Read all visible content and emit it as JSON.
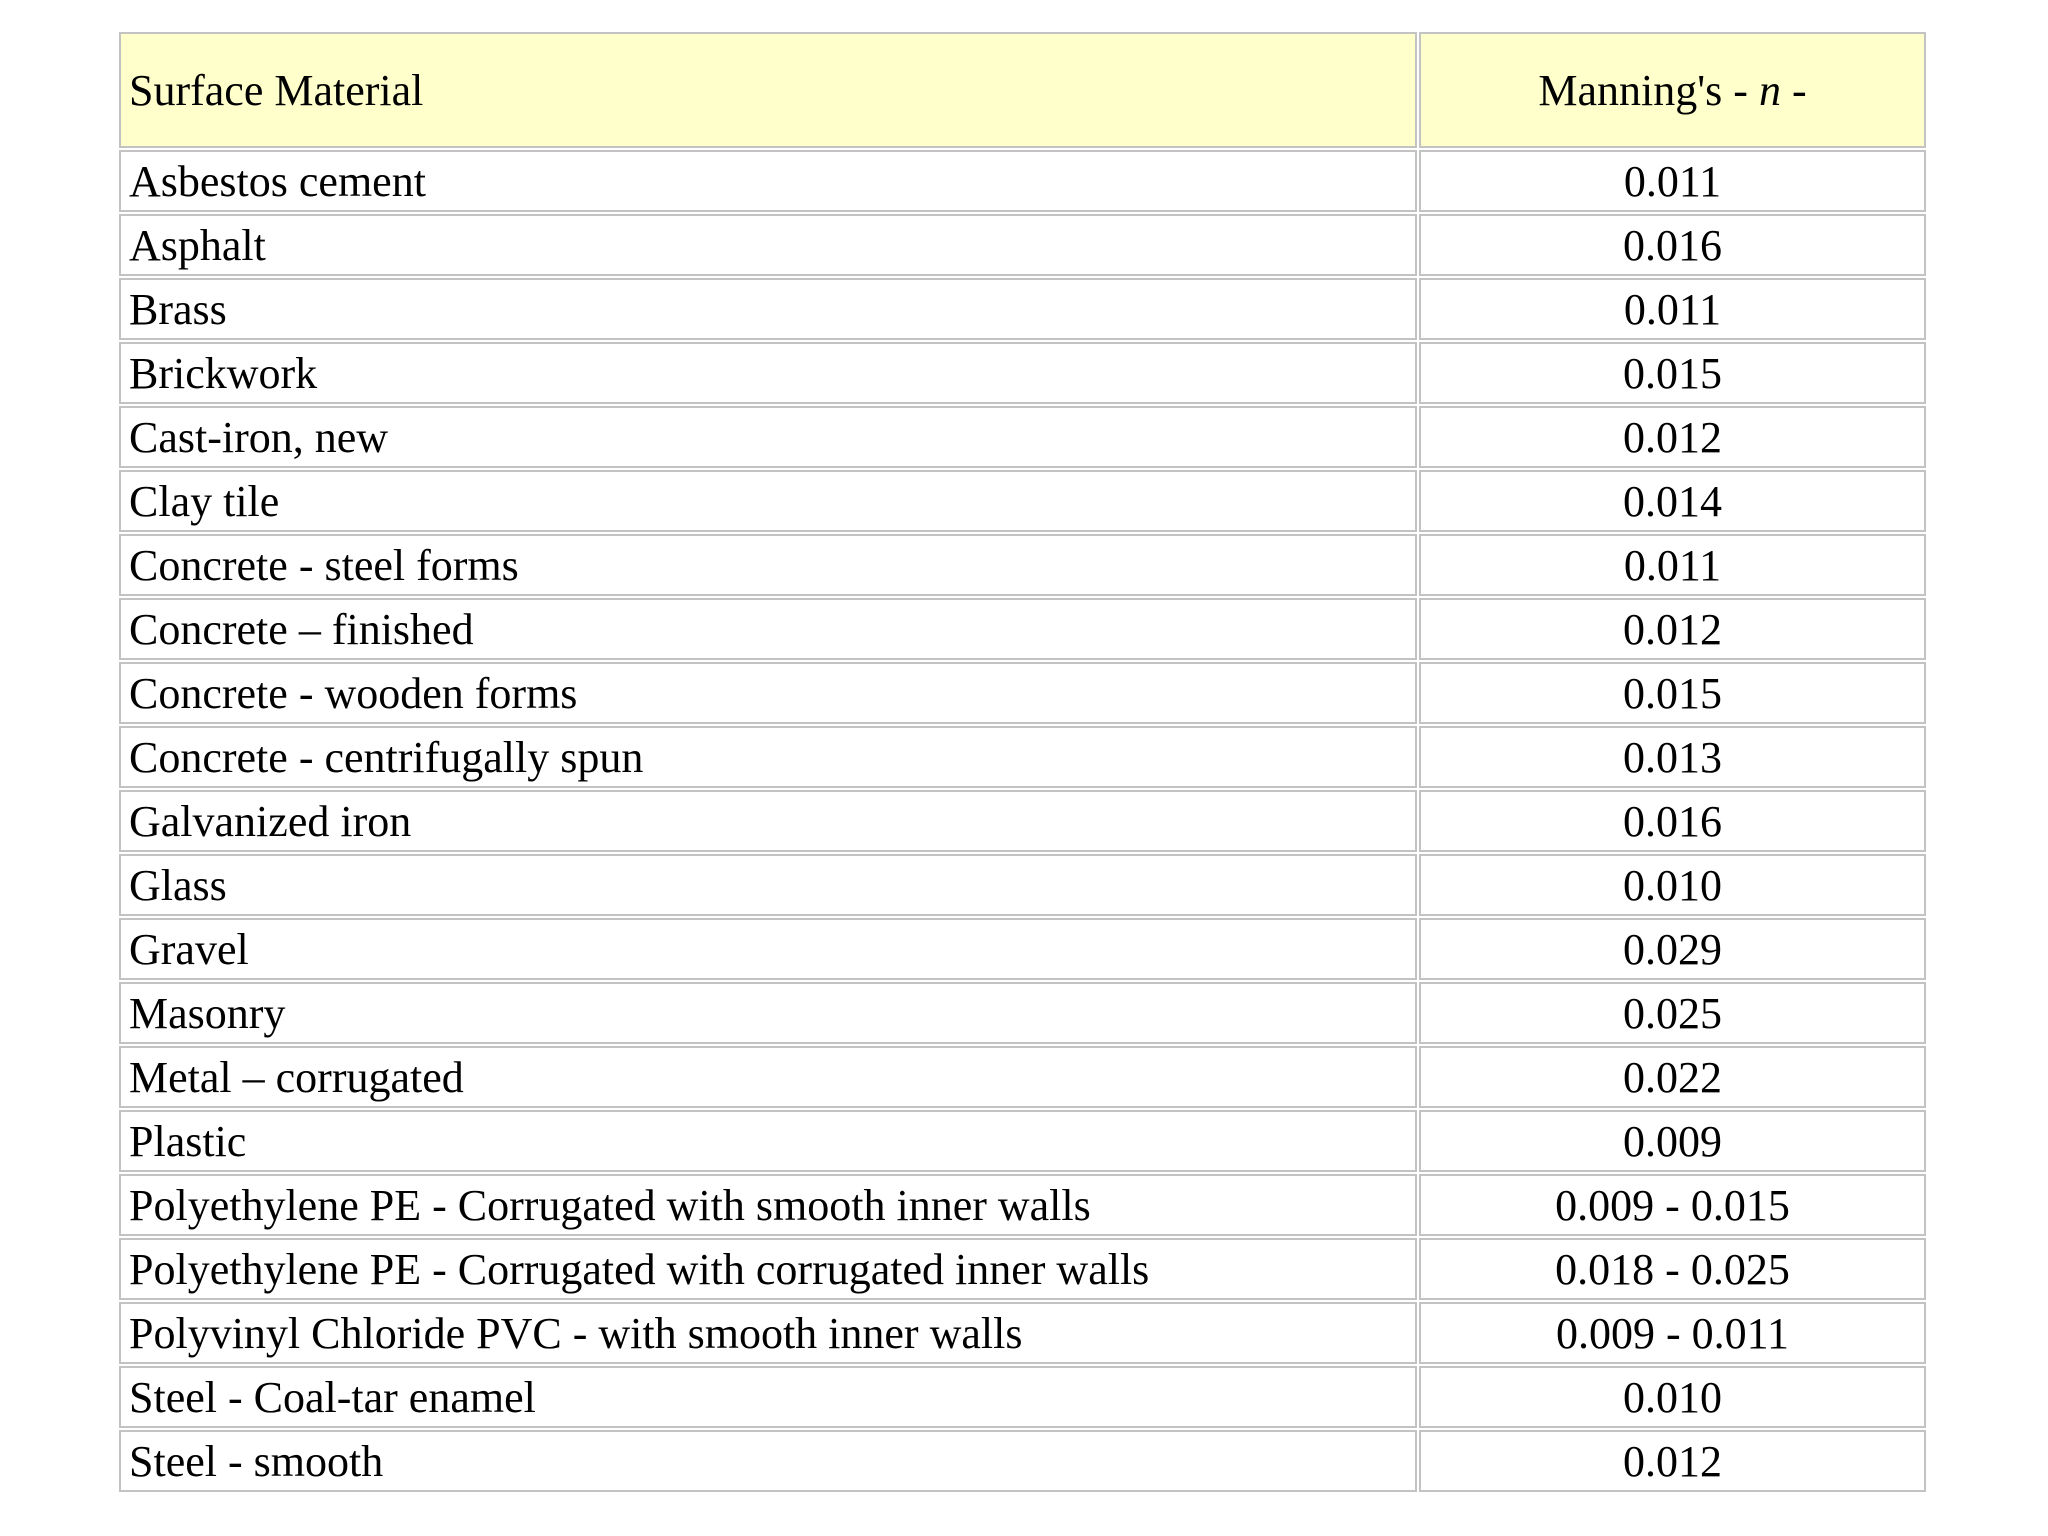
{
  "page": {
    "background_color": "#ffffff",
    "text_color": "#000000"
  },
  "table": {
    "header": {
      "material_label": "Surface Material",
      "n_label_prefix": "Manning's - ",
      "n_label_symbol": "n",
      "n_label_suffix": " -",
      "header_bg_color": "#ffffcc",
      "border_color": "#c3c3c3"
    }
  },
  "chart_data": {
    "type": "table",
    "columns": [
      "Surface Material",
      "Manning's - n -"
    ],
    "rows": [
      [
        "Asbestos cement",
        "0.011"
      ],
      [
        "Asphalt",
        "0.016"
      ],
      [
        "Brass",
        "0.011"
      ],
      [
        "Brickwork",
        "0.015"
      ],
      [
        "Cast-iron, new",
        "0.012"
      ],
      [
        "Clay tile",
        "0.014"
      ],
      [
        "Concrete - steel forms",
        "0.011"
      ],
      [
        "Concrete – finished",
        "0.012"
      ],
      [
        "Concrete - wooden forms",
        "0.015"
      ],
      [
        "Concrete - centrifugally spun",
        "0.013"
      ],
      [
        "Galvanized iron",
        "0.016"
      ],
      [
        "Glass",
        "0.010"
      ],
      [
        "Gravel",
        "0.029"
      ],
      [
        "Masonry",
        "0.025"
      ],
      [
        "Metal – corrugated",
        "0.022"
      ],
      [
        "Plastic",
        "0.009"
      ],
      [
        "Polyethylene PE - Corrugated with smooth inner walls",
        "0.009 - 0.015"
      ],
      [
        "Polyethylene PE - Corrugated with corrugated inner walls",
        "0.018 - 0.025"
      ],
      [
        "Polyvinyl Chloride PVC - with smooth inner walls",
        "0.009 - 0.011"
      ],
      [
        "Steel - Coal-tar enamel",
        "0.010"
      ],
      [
        "Steel - smooth",
        "0.012"
      ]
    ]
  }
}
